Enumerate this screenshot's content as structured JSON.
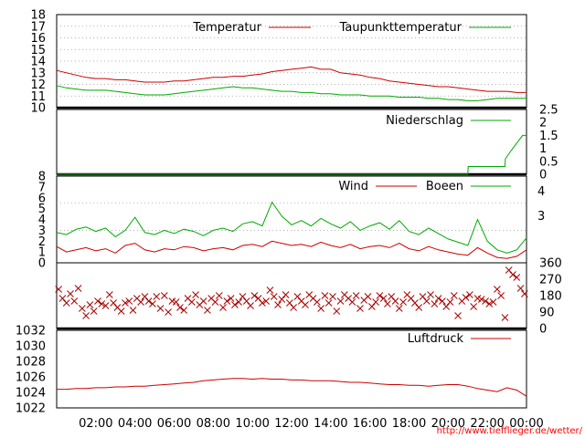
{
  "chart_data": [
    {
      "type": "line",
      "panel": "temperature",
      "x_unit": "hour",
      "xlim": [
        0,
        24
      ],
      "ylim": [
        10,
        18
      ],
      "yticks": [
        "10",
        "11",
        "12",
        "13",
        "14",
        "15",
        "16",
        "17",
        "18"
      ],
      "legend_placement": "top",
      "grid": true,
      "series": [
        {
          "name": "Temperatur",
          "color": "#cc0000",
          "x": [
            0,
            0.5,
            1,
            1.5,
            2,
            2.5,
            3,
            3.5,
            4,
            4.5,
            5,
            5.5,
            6,
            6.5,
            7,
            7.5,
            8,
            8.5,
            9,
            9.5,
            10,
            10.5,
            11,
            11.5,
            12,
            12.5,
            13,
            13.5,
            14,
            14.5,
            15,
            15.5,
            16,
            16.5,
            17,
            17.5,
            18,
            18.5,
            19,
            19.5,
            20,
            20.5,
            21,
            21.5,
            22,
            22.5,
            23,
            23.5,
            24
          ],
          "values": [
            13.2,
            13.0,
            12.8,
            12.6,
            12.5,
            12.5,
            12.4,
            12.4,
            12.3,
            12.2,
            12.2,
            12.2,
            12.3,
            12.3,
            12.4,
            12.5,
            12.6,
            12.6,
            12.7,
            12.7,
            12.8,
            12.9,
            13.1,
            13.2,
            13.3,
            13.4,
            13.5,
            13.3,
            13.3,
            13.0,
            12.9,
            12.8,
            12.6,
            12.5,
            12.3,
            12.2,
            12.1,
            12.0,
            11.9,
            11.8,
            11.8,
            11.7,
            11.6,
            11.5,
            11.4,
            11.4,
            11.4,
            11.3,
            11.3
          ]
        },
        {
          "name": "Taupunkttemperatur",
          "color": "#00aa00",
          "x": [
            0,
            0.5,
            1,
            1.5,
            2,
            2.5,
            3,
            3.5,
            4,
            4.5,
            5,
            5.5,
            6,
            6.5,
            7,
            7.5,
            8,
            8.5,
            9,
            9.5,
            10,
            10.5,
            11,
            11.5,
            12,
            12.5,
            13,
            13.5,
            14,
            14.5,
            15,
            15.5,
            16,
            16.5,
            17,
            17.5,
            18,
            18.5,
            19,
            19.5,
            20,
            20.5,
            21,
            21.5,
            22,
            22.5,
            23,
            23.5,
            24
          ],
          "values": [
            11.9,
            11.7,
            11.6,
            11.5,
            11.5,
            11.5,
            11.4,
            11.3,
            11.2,
            11.1,
            11.1,
            11.1,
            11.2,
            11.3,
            11.4,
            11.5,
            11.6,
            11.7,
            11.8,
            11.7,
            11.7,
            11.6,
            11.5,
            11.4,
            11.4,
            11.3,
            11.3,
            11.2,
            11.2,
            11.1,
            11.1,
            11.1,
            11.0,
            11.0,
            11.0,
            10.9,
            10.9,
            10.9,
            10.8,
            10.8,
            10.7,
            10.7,
            10.6,
            10.6,
            10.7,
            10.8,
            10.8,
            10.8,
            10.8
          ]
        }
      ]
    },
    {
      "type": "line",
      "panel": "precipitation",
      "x_unit": "hour",
      "xlim": [
        0,
        24
      ],
      "ylim": [
        0,
        2.5
      ],
      "yticks_right": [
        "0",
        "0.5",
        "1",
        "1.5",
        "2",
        "2.5"
      ],
      "legend_placement": "top-right",
      "series": [
        {
          "name": "Niederschlag",
          "color": "#00aa00",
          "x": [
            0,
            21.0,
            21.02,
            22.9,
            22.92,
            23.2,
            23.4,
            23.6,
            23.8,
            24
          ],
          "values": [
            0,
            0,
            0.3,
            0.3,
            0.6,
            0.9,
            1.1,
            1.3,
            1.5,
            1.5
          ]
        }
      ]
    },
    {
      "type": "line",
      "panel": "wind",
      "x_unit": "hour",
      "xlim": [
        0,
        24
      ],
      "ylim": [
        0,
        8
      ],
      "yticks": [
        "0",
        "1",
        "2",
        "3",
        "4",
        "5",
        "6",
        "7",
        "8"
      ],
      "yticks_right": [
        "3",
        "4"
      ],
      "legend_placement": "top-right",
      "series": [
        {
          "name": "Wind",
          "color": "#cc0000",
          "x": [
            0,
            0.5,
            1,
            1.5,
            2,
            2.5,
            3,
            3.5,
            4,
            4.5,
            5,
            5.5,
            6,
            6.5,
            7,
            7.5,
            8,
            8.5,
            9,
            9.5,
            10,
            10.5,
            11,
            11.5,
            12,
            12.5,
            13,
            13.5,
            14,
            14.5,
            15,
            15.5,
            16,
            16.5,
            17,
            17.5,
            18,
            18.5,
            19,
            19.5,
            20,
            20.5,
            21,
            21.5,
            22,
            22.5,
            23,
            23.5,
            24
          ],
          "values": [
            1.5,
            1.0,
            1.2,
            1.4,
            1.1,
            1.3,
            0.9,
            1.6,
            1.8,
            1.2,
            1.0,
            1.3,
            1.2,
            1.5,
            1.4,
            1.1,
            1.3,
            1.4,
            1.2,
            1.6,
            1.7,
            1.5,
            2.0,
            1.8,
            1.6,
            1.7,
            1.5,
            1.9,
            1.6,
            1.4,
            1.7,
            1.3,
            1.5,
            1.6,
            1.4,
            1.8,
            1.3,
            1.1,
            1.5,
            1.2,
            1.0,
            0.8,
            0.7,
            1.4,
            0.9,
            0.5,
            0.4,
            0.6,
            1.2
          ]
        },
        {
          "name": "Boeen",
          "color": "#00aa00",
          "x": [
            0,
            0.5,
            1,
            1.5,
            2,
            2.5,
            3,
            3.5,
            4,
            4.5,
            5,
            5.5,
            6,
            6.5,
            7,
            7.5,
            8,
            8.5,
            9,
            9.5,
            10,
            10.5,
            11,
            11.5,
            12,
            12.5,
            13,
            13.5,
            14,
            14.5,
            15,
            15.5,
            16,
            16.5,
            17,
            17.5,
            18,
            18.5,
            19,
            19.5,
            20,
            20.5,
            21,
            21.5,
            22,
            22.5,
            23,
            23.5,
            24
          ],
          "values": [
            2.8,
            2.6,
            3.1,
            3.3,
            2.9,
            3.2,
            2.4,
            3.0,
            4.2,
            2.8,
            2.6,
            3.0,
            2.7,
            3.1,
            2.9,
            2.5,
            3.0,
            3.2,
            2.9,
            3.6,
            3.8,
            3.4,
            5.6,
            4.3,
            3.5,
            3.9,
            3.4,
            4.1,
            3.6,
            3.2,
            3.8,
            3.0,
            3.4,
            3.7,
            3.1,
            3.9,
            2.9,
            2.6,
            3.2,
            2.7,
            2.2,
            1.9,
            1.6,
            4.0,
            2.0,
            1.2,
            0.9,
            1.2,
            2.3
          ]
        }
      ]
    },
    {
      "type": "scatter",
      "panel": "wind-direction",
      "x_unit": "hour",
      "xlim": [
        0,
        24
      ],
      "ylim": [
        0,
        360
      ],
      "yticks_right": [
        "0",
        "90",
        "180",
        "270",
        "360"
      ],
      "marker": "x",
      "series": [
        {
          "color": "#aa0000",
          "x": [
            0.1,
            0.3,
            0.5,
            0.7,
            0.9,
            1.1,
            1.3,
            1.5,
            1.7,
            1.9,
            2.1,
            2.3,
            2.5,
            2.7,
            2.9,
            3.1,
            3.3,
            3.5,
            3.7,
            3.9,
            4.1,
            4.3,
            4.5,
            4.7,
            4.9,
            5.1,
            5.3,
            5.5,
            5.7,
            5.9,
            6.1,
            6.3,
            6.5,
            6.7,
            6.9,
            7.1,
            7.3,
            7.5,
            7.7,
            7.9,
            8.1,
            8.3,
            8.5,
            8.7,
            8.9,
            9.1,
            9.3,
            9.5,
            9.7,
            9.9,
            10.1,
            10.3,
            10.5,
            10.7,
            10.9,
            11.1,
            11.3,
            11.5,
            11.7,
            11.9,
            12.1,
            12.3,
            12.5,
            12.7,
            12.9,
            13.1,
            13.3,
            13.5,
            13.7,
            13.9,
            14.1,
            14.3,
            14.5,
            14.7,
            14.9,
            15.1,
            15.3,
            15.5,
            15.7,
            15.9,
            16.1,
            16.3,
            16.5,
            16.7,
            16.9,
            17.1,
            17.3,
            17.5,
            17.7,
            17.9,
            18.1,
            18.3,
            18.5,
            18.7,
            18.9,
            19.1,
            19.3,
            19.5,
            19.7,
            19.9,
            20.1,
            20.3,
            20.5,
            20.7,
            20.9,
            21.1,
            21.3,
            21.5,
            21.7,
            21.9,
            22.1,
            22.3,
            22.5,
            22.7,
            22.9,
            23.1,
            23.3,
            23.5,
            23.7,
            23.9
          ],
          "values": [
            215,
            165,
            140,
            190,
            150,
            220,
            110,
            70,
            130,
            95,
            150,
            135,
            125,
            185,
            140,
            115,
            95,
            140,
            150,
            100,
            165,
            145,
            175,
            150,
            135,
            175,
            110,
            180,
            90,
            150,
            145,
            115,
            100,
            165,
            145,
            185,
            130,
            150,
            100,
            165,
            145,
            180,
            115,
            150,
            165,
            130,
            145,
            175,
            150,
            125,
            180,
            165,
            140,
            150,
            210,
            175,
            130,
            160,
            185,
            140,
            115,
            175,
            150,
            130,
            185,
            165,
            145,
            110,
            180,
            140,
            175,
            95,
            150,
            185,
            165,
            145,
            180,
            110,
            155,
            175,
            120,
            145,
            180,
            165,
            135,
            175,
            150,
            110,
            145,
            185,
            165,
            140,
            115,
            175,
            150,
            185,
            135,
            165,
            150,
            120,
            145,
            180,
            70,
            150,
            170,
            185,
            120,
            165,
            160,
            150,
            135,
            145,
            215,
            180,
            60,
            320,
            295,
            280,
            220,
            190
          ]
        }
      ]
    },
    {
      "type": "line",
      "panel": "pressure",
      "x_unit": "hour",
      "xlim": [
        0,
        24
      ],
      "ylim": [
        1022,
        1032
      ],
      "yticks": [
        "1022",
        "1024",
        "1026",
        "1028",
        "1030",
        "1032"
      ],
      "legend_placement": "top-right",
      "series": [
        {
          "name": "Luftdruck",
          "color": "#cc0000",
          "x": [
            0,
            0.5,
            1,
            1.5,
            2,
            2.5,
            3,
            3.5,
            4,
            4.5,
            5,
            5.5,
            6,
            6.5,
            7,
            7.5,
            8,
            8.5,
            9,
            9.5,
            10,
            10.5,
            11,
            11.5,
            12,
            12.5,
            13,
            13.5,
            14,
            14.5,
            15,
            15.5,
            16,
            16.5,
            17,
            17.5,
            18,
            18.5,
            19,
            19.5,
            20,
            20.5,
            21,
            21.5,
            22,
            22.5,
            23,
            23.5,
            24
          ],
          "values": [
            1024.4,
            1024.4,
            1024.5,
            1024.5,
            1024.6,
            1024.6,
            1024.7,
            1024.7,
            1024.8,
            1024.8,
            1024.9,
            1025.0,
            1025.1,
            1025.2,
            1025.3,
            1025.5,
            1025.6,
            1025.7,
            1025.8,
            1025.8,
            1025.7,
            1025.8,
            1025.7,
            1025.7,
            1025.6,
            1025.6,
            1025.5,
            1025.5,
            1025.5,
            1025.4,
            1025.3,
            1025.3,
            1025.2,
            1025.1,
            1025.0,
            1025.0,
            1024.9,
            1024.9,
            1024.8,
            1024.9,
            1025.0,
            1025.0,
            1024.8,
            1024.5,
            1024.3,
            1024.1,
            1024.6,
            1024.3,
            1023.5
          ]
        }
      ]
    }
  ],
  "x_axis": {
    "ticks": [
      "02:00",
      "04:00",
      "06:00",
      "08:00",
      "10:00",
      "12:00",
      "14:00",
      "16:00",
      "18:00",
      "20:00",
      "22:00",
      "00:00"
    ]
  },
  "footer": {
    "url": "http://www.tiefflieger.de/wetter/",
    "url_color": "#ff0000"
  }
}
